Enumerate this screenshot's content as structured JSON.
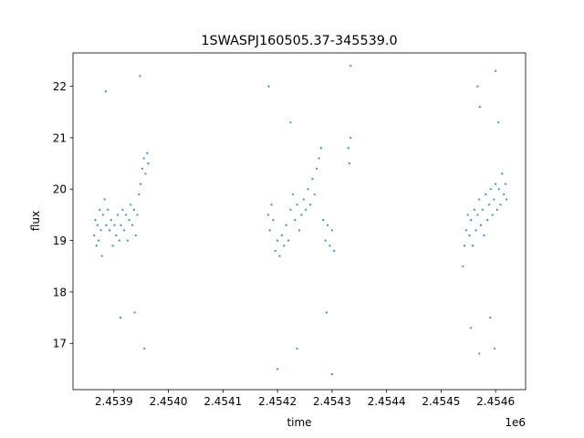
{
  "chart_data": {
    "type": "scatter",
    "title": "1SWASPJ160505.37-345539.0",
    "xlabel": "time",
    "ylabel": "flux",
    "x_offset_label": "1e6",
    "xlim": [
      2453825,
      2454655
    ],
    "ylim": [
      16.1,
      22.65
    ],
    "x_ticks": [
      {
        "value": 2453900,
        "label": "2.4539"
      },
      {
        "value": 2454000,
        "label": "2.4540"
      },
      {
        "value": 2454100,
        "label": "2.4541"
      },
      {
        "value": 2454200,
        "label": "2.4542"
      },
      {
        "value": 2454300,
        "label": "2.4543"
      },
      {
        "value": 2454400,
        "label": "2.4544"
      },
      {
        "value": 2454500,
        "label": "2.4545"
      },
      {
        "value": 2454600,
        "label": "2.4546"
      }
    ],
    "y_ticks": [
      {
        "value": 17,
        "label": "17"
      },
      {
        "value": 18,
        "label": "18"
      },
      {
        "value": 19,
        "label": "19"
      },
      {
        "value": 20,
        "label": "20"
      },
      {
        "value": 21,
        "label": "21"
      },
      {
        "value": 22,
        "label": "22"
      }
    ],
    "grid": false,
    "marker_color": "#1f77b4",
    "series": [
      {
        "points": [
          [
            2453864,
            19.1
          ],
          [
            2453866,
            19.4
          ],
          [
            2453868,
            18.9
          ],
          [
            2453870,
            19.3
          ],
          [
            2453872,
            19.0
          ],
          [
            2453874,
            19.6
          ],
          [
            2453876,
            19.2
          ],
          [
            2453878,
            18.7
          ],
          [
            2453880,
            19.5
          ],
          [
            2453883,
            19.8
          ],
          [
            2453886,
            19.3
          ],
          [
            2453889,
            19.6
          ],
          [
            2453892,
            19.2
          ],
          [
            2453895,
            19.4
          ],
          [
            2453898,
            18.9
          ],
          [
            2453901,
            19.3
          ],
          [
            2453904,
            19.1
          ],
          [
            2453907,
            19.5
          ],
          [
            2453910,
            19.0
          ],
          [
            2453913,
            19.3
          ],
          [
            2453916,
            19.6
          ],
          [
            2453919,
            19.2
          ],
          [
            2453922,
            19.5
          ],
          [
            2453925,
            19.0
          ],
          [
            2453928,
            19.4
          ],
          [
            2453931,
            19.7
          ],
          [
            2453934,
            19.3
          ],
          [
            2453937,
            19.6
          ],
          [
            2453940,
            19.1
          ],
          [
            2453943,
            19.5
          ],
          [
            2453946,
            19.9
          ],
          [
            2453949,
            20.1
          ],
          [
            2453952,
            20.4
          ],
          [
            2453955,
            20.6
          ],
          [
            2453958,
            20.3
          ],
          [
            2453961,
            20.7
          ],
          [
            2453963,
            20.5
          ],
          [
            2453885,
            21.9
          ],
          [
            2453912,
            17.5
          ],
          [
            2453948,
            22.2
          ],
          [
            2453956,
            16.9
          ],
          [
            2453938,
            17.6
          ],
          [
            2454183,
            19.5
          ],
          [
            2454186,
            19.2
          ],
          [
            2454189,
            19.7
          ],
          [
            2454192,
            19.4
          ],
          [
            2454196,
            18.8
          ],
          [
            2454200,
            19.0
          ],
          [
            2454204,
            18.7
          ],
          [
            2454208,
            19.1
          ],
          [
            2454212,
            18.9
          ],
          [
            2454216,
            19.3
          ],
          [
            2454220,
            19.0
          ],
          [
            2454224,
            19.6
          ],
          [
            2454228,
            19.9
          ],
          [
            2454232,
            19.4
          ],
          [
            2454236,
            19.7
          ],
          [
            2454240,
            19.2
          ],
          [
            2454244,
            19.5
          ],
          [
            2454248,
            19.8
          ],
          [
            2454252,
            19.6
          ],
          [
            2454256,
            20.0
          ],
          [
            2454260,
            19.7
          ],
          [
            2454264,
            20.2
          ],
          [
            2454268,
            19.9
          ],
          [
            2454272,
            20.4
          ],
          [
            2454276,
            20.6
          ],
          [
            2454280,
            20.8
          ],
          [
            2454284,
            19.4
          ],
          [
            2454288,
            19.0
          ],
          [
            2454292,
            19.3
          ],
          [
            2454296,
            18.9
          ],
          [
            2454300,
            19.2
          ],
          [
            2454304,
            18.8
          ],
          [
            2454330,
            20.8
          ],
          [
            2454332,
            20.5
          ],
          [
            2454334,
            21.0
          ],
          [
            2454200,
            16.5
          ],
          [
            2454224,
            21.3
          ],
          [
            2454236,
            16.9
          ],
          [
            2454290,
            17.6
          ],
          [
            2454334,
            22.4
          ],
          [
            2454184,
            22.0
          ],
          [
            2454300,
            16.4
          ],
          [
            2454540,
            18.5
          ],
          [
            2454543,
            18.9
          ],
          [
            2454546,
            19.2
          ],
          [
            2454549,
            19.5
          ],
          [
            2454552,
            19.1
          ],
          [
            2454555,
            19.4
          ],
          [
            2454558,
            18.9
          ],
          [
            2454561,
            19.6
          ],
          [
            2454564,
            19.2
          ],
          [
            2454567,
            19.5
          ],
          [
            2454570,
            19.8
          ],
          [
            2454573,
            19.3
          ],
          [
            2454576,
            19.6
          ],
          [
            2454579,
            19.1
          ],
          [
            2454582,
            19.9
          ],
          [
            2454585,
            19.4
          ],
          [
            2454588,
            19.7
          ],
          [
            2454591,
            20.0
          ],
          [
            2454594,
            19.5
          ],
          [
            2454597,
            19.8
          ],
          [
            2454600,
            20.1
          ],
          [
            2454603,
            19.6
          ],
          [
            2454606,
            20.0
          ],
          [
            2454609,
            19.7
          ],
          [
            2454612,
            20.3
          ],
          [
            2454615,
            19.9
          ],
          [
            2454618,
            20.1
          ],
          [
            2454620,
            19.8
          ],
          [
            2454567,
            22.0
          ],
          [
            2454571,
            21.6
          ],
          [
            2454600,
            22.3
          ],
          [
            2454605,
            21.3
          ],
          [
            2454570,
            16.8
          ],
          [
            2454598,
            16.9
          ],
          [
            2454590,
            17.5
          ],
          [
            2454555,
            17.3
          ]
        ]
      }
    ]
  }
}
